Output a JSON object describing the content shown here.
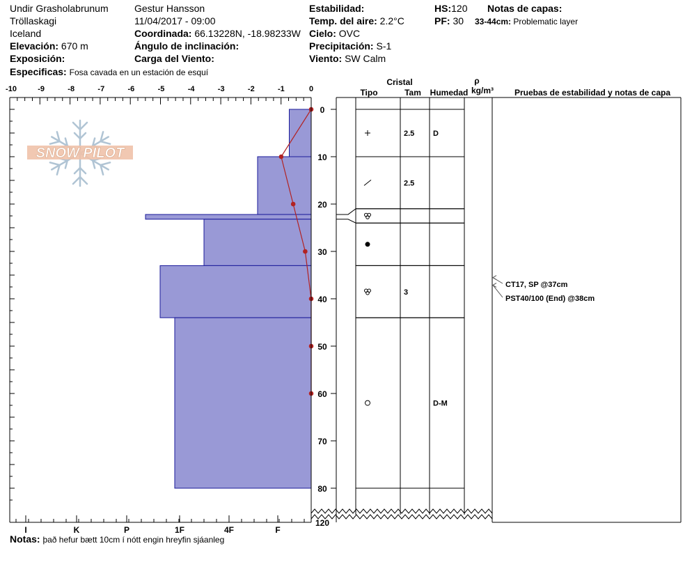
{
  "header": {
    "location": "Undir Grasholabrunum",
    "range": "Tröllaskagi",
    "country": "Iceland",
    "elevation_label": "Elevación:",
    "elevation": "670 m",
    "aspect_label": "Exposición:",
    "aspect": "",
    "observer": "Gestur Hansson",
    "datetime": "11/04/2017 - 09:00",
    "coord_label": "Coordinada:",
    "coord": "66.13228N, -18.98233W",
    "incline_label": "Ángulo de inclinación:",
    "incline": "",
    "wind_load_label": "Carga del Viento:",
    "wind_load": "",
    "stability_label": "Estabilidad:",
    "stability": "",
    "air_temp_label": "Temp. del aire:",
    "air_temp": "2.2°C",
    "sky_label": "Cielo:",
    "sky": "OVC",
    "precip_label": "Precipitación:",
    "precip": "S-1",
    "wind_label": "Viento:",
    "wind": "SW Calm",
    "hs_label": "HS:",
    "hs": "120",
    "pf_label": "PF:",
    "pf": "30",
    "layer_notes_label": "Notas de capas:",
    "layer_note_range": "33-44cm:",
    "layer_note_text": "Problematic layer",
    "specifics_label": "Especificas:",
    "specifics": "Fosa cavada en un estación de esquí",
    "notes_label": "Notas:",
    "notes": "það hefur bætt 10cm í nótt engin hreyfin sjáanleg"
  },
  "logo": {
    "text": "SNOW PILOT"
  },
  "chart_data": {
    "type": "snow-profile",
    "temp_axis": {
      "ticks": [
        "-10",
        "-9",
        "-8",
        "-7",
        "-6",
        "-5",
        "-4",
        "-3",
        "-2",
        "-1",
        "0"
      ],
      "range": [
        -10,
        0
      ]
    },
    "hardness_axis": {
      "ticks": [
        "I",
        "K",
        "P",
        "1F",
        "4F",
        "F"
      ]
    },
    "depth_axis": {
      "ticks": [
        "0",
        "10",
        "20",
        "30",
        "40",
        "50",
        "60",
        "70",
        "80",
        "120"
      ],
      "range": [
        0,
        120
      ],
      "break_after": 80
    },
    "temperature_profile": [
      {
        "depth": 0,
        "temp": 0
      },
      {
        "depth": 10,
        "temp": -1.0
      },
      {
        "depth": 20,
        "temp": -0.6
      },
      {
        "depth": 30,
        "temp": -0.2
      },
      {
        "depth": 40,
        "temp": 0
      },
      {
        "depth": 50,
        "temp": 0
      },
      {
        "depth": 60,
        "temp": 0
      }
    ],
    "hardness_layers": [
      {
        "top": 0,
        "bottom": 10,
        "hardness": 0.45
      },
      {
        "top": 10,
        "bottom": 22.2,
        "hardness": 1.1
      },
      {
        "top": 22.2,
        "bottom": 23.2,
        "hardness": 3.4
      },
      {
        "top": 23.2,
        "bottom": 33,
        "hardness": 2.2
      },
      {
        "top": 33,
        "bottom": 44,
        "hardness": 3.1
      },
      {
        "top": 44,
        "bottom": 80,
        "hardness": 2.8
      }
    ],
    "columns": {
      "cristal": "Cristal",
      "tipo": "Tipo",
      "tam": "Tam",
      "humedad": "Humedad",
      "rho": "ρ",
      "rho_unit": "kg/m³",
      "tests": "Pruebas de estabilidad y notas de capa"
    },
    "layer_rows": [
      {
        "top": 0,
        "bottom": 10,
        "mid": 5,
        "type": "plus",
        "size": "2.5",
        "wetness": "D"
      },
      {
        "top": 10,
        "bottom": 21,
        "mid": 15.5,
        "type": "slash",
        "size": "2.5",
        "wetness": ""
      },
      {
        "top": 21,
        "bottom": 24,
        "mid": 22.5,
        "type": "trefoil",
        "size": "",
        "wetness": ""
      },
      {
        "top": 24,
        "bottom": 33,
        "mid": 28.5,
        "type": "dot",
        "size": "",
        "wetness": ""
      },
      {
        "top": 33,
        "bottom": 44,
        "mid": 38.5,
        "type": "trefoil",
        "size": "3",
        "wetness": ""
      },
      {
        "top": 44,
        "bottom": 80,
        "mid": 62,
        "type": "circle",
        "size": "",
        "wetness": "D-M"
      }
    ],
    "stability_tests": [
      {
        "depth": 37,
        "label": "CT17, SP @37cm"
      },
      {
        "depth": 38,
        "label": "PST40/100 (End) @38cm"
      }
    ],
    "colors": {
      "hardness_fill": "#9999d6",
      "hardness_stroke": "#1a1a9a",
      "temp_line": "#b22222"
    }
  }
}
